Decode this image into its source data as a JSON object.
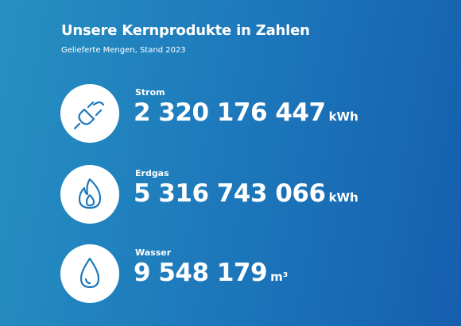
{
  "header": {
    "title": "Unsere Kernprodukte in Zahlen",
    "subtitle": "Gelieferte Mengen, Stand 2023"
  },
  "items": [
    {
      "label": "Strom",
      "value": "2 320 176 447",
      "unit": "kWh"
    },
    {
      "label": "Erdgas",
      "value": "5 316 743 066",
      "unit": "kWh"
    },
    {
      "label": "Wasser",
      "value": "9 548 179",
      "unit": "m³"
    }
  ]
}
